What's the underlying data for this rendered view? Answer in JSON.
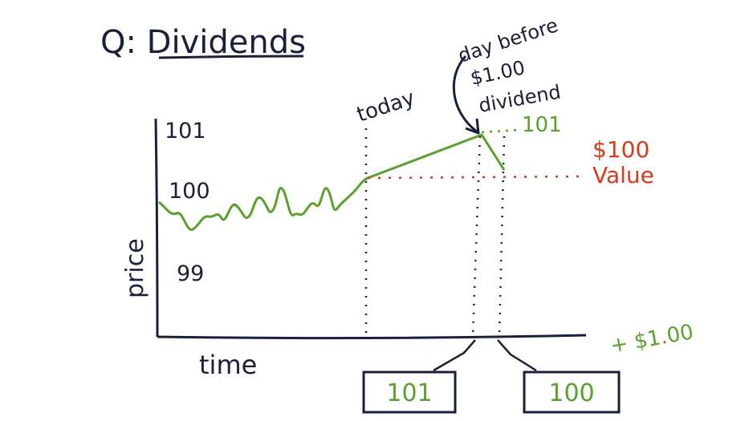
{
  "title": "Q: Dividends",
  "y_axis_label": "price",
  "x_axis_label": "time",
  "y_ticks": [
    "101",
    "100",
    "99"
  ],
  "annotations": {
    "today": "today",
    "day_before_line1": "day before",
    "day_before_line2": "$1.00",
    "day_before_line3": "dividend",
    "peak_value": "101",
    "value_line1": "$100",
    "value_line2": "Value",
    "plus_dividend": "+ $1.00"
  },
  "boxes": {
    "before": "101",
    "after": "100"
  },
  "colors": {
    "ink": "#1a1f3a",
    "green": "#5aa02c",
    "red": "#d83a1e"
  }
}
